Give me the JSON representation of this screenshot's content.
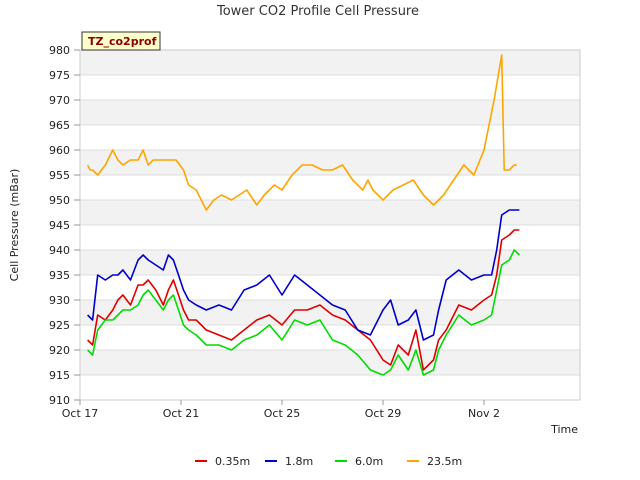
{
  "chart_data": {
    "type": "line",
    "title": "Tower CO2 Profile Cell Pressure",
    "badge": "TZ_co2prof",
    "xlabel": "Time",
    "ylabel": "Cell Pressure (mBar)",
    "ylim": [
      910,
      980
    ],
    "yticks": [
      910,
      915,
      920,
      925,
      930,
      935,
      940,
      945,
      950,
      955,
      960,
      965,
      970,
      975,
      980
    ],
    "xlim": [
      0,
      19.8
    ],
    "xticks": [
      {
        "v": 0,
        "label": "Oct 17"
      },
      {
        "v": 4,
        "label": "Oct 21"
      },
      {
        "v": 8,
        "label": "Oct 25"
      },
      {
        "v": 12,
        "label": "Oct 29"
      },
      {
        "v": 16,
        "label": "Nov 2"
      }
    ],
    "grid": true,
    "legend_position": "bottom",
    "series": [
      {
        "name": "0.35m",
        "color": "#e00000",
        "x": [
          0.3,
          0.5,
          0.7,
          1.0,
          1.3,
          1.5,
          1.7,
          2.0,
          2.3,
          2.5,
          2.7,
          3.0,
          3.3,
          3.5,
          3.7,
          3.9,
          4.1,
          4.3,
          4.6,
          5.0,
          5.5,
          6.0,
          6.5,
          7.0,
          7.5,
          8.0,
          8.5,
          9.0,
          9.5,
          10.0,
          10.5,
          11.0,
          11.5,
          12.0,
          12.3,
          12.6,
          13.0,
          13.3,
          13.6,
          14.0,
          14.2,
          14.5,
          15.0,
          15.5,
          16.0,
          16.3,
          16.5,
          16.7,
          17.0,
          17.2,
          17.4
        ],
        "y": [
          922,
          921,
          927,
          926,
          928,
          930,
          931,
          929,
          933,
          933,
          934,
          932,
          929,
          932,
          934,
          931,
          928,
          926,
          926,
          924,
          923,
          922,
          924,
          926,
          927,
          925,
          928,
          928,
          929,
          927,
          926,
          924,
          922,
          918,
          917,
          921,
          919,
          924,
          916,
          918,
          922,
          924,
          929,
          928,
          930,
          931,
          935,
          942,
          943,
          944,
          944
        ]
      },
      {
        "name": "1.8m",
        "color": "#0000cc",
        "x": [
          0.3,
          0.5,
          0.7,
          1.0,
          1.3,
          1.5,
          1.7,
          2.0,
          2.3,
          2.5,
          2.7,
          3.0,
          3.3,
          3.5,
          3.7,
          3.9,
          4.1,
          4.3,
          4.6,
          5.0,
          5.5,
          6.0,
          6.5,
          7.0,
          7.5,
          8.0,
          8.5,
          9.0,
          9.5,
          10.0,
          10.5,
          11.0,
          11.5,
          12.0,
          12.3,
          12.6,
          13.0,
          13.3,
          13.6,
          14.0,
          14.2,
          14.5,
          15.0,
          15.5,
          16.0,
          16.3,
          16.5,
          16.7,
          17.0,
          17.2,
          17.4
        ],
        "y": [
          927,
          926,
          935,
          934,
          935,
          935,
          936,
          934,
          938,
          939,
          938,
          937,
          936,
          939,
          938,
          935,
          932,
          930,
          929,
          928,
          929,
          928,
          932,
          933,
          935,
          931,
          935,
          933,
          931,
          929,
          928,
          924,
          923,
          928,
          930,
          925,
          926,
          928,
          922,
          923,
          928,
          934,
          936,
          934,
          935,
          935,
          940,
          947,
          948,
          948,
          948
        ]
      },
      {
        "name": "6.0m",
        "color": "#00dd00",
        "x": [
          0.3,
          0.5,
          0.7,
          1.0,
          1.3,
          1.5,
          1.7,
          2.0,
          2.3,
          2.5,
          2.7,
          3.0,
          3.3,
          3.5,
          3.7,
          3.9,
          4.1,
          4.3,
          4.6,
          5.0,
          5.5,
          6.0,
          6.5,
          7.0,
          7.5,
          8.0,
          8.5,
          9.0,
          9.5,
          10.0,
          10.5,
          11.0,
          11.5,
          12.0,
          12.3,
          12.6,
          13.0,
          13.3,
          13.6,
          14.0,
          14.2,
          14.5,
          15.0,
          15.5,
          16.0,
          16.3,
          16.5,
          16.7,
          17.0,
          17.2,
          17.4
        ],
        "y": [
          920,
          919,
          924,
          926,
          926,
          927,
          928,
          928,
          929,
          931,
          932,
          930,
          928,
          930,
          931,
          928,
          925,
          924,
          923,
          921,
          921,
          920,
          922,
          923,
          925,
          922,
          926,
          925,
          926,
          922,
          921,
          919,
          916,
          915,
          916,
          919,
          916,
          920,
          915,
          916,
          920,
          923,
          927,
          925,
          926,
          927,
          932,
          937,
          938,
          940,
          939
        ]
      },
      {
        "name": "23.5m",
        "color": "#ffa500",
        "x": [
          0.3,
          0.4,
          0.5,
          0.7,
          1.0,
          1.3,
          1.5,
          1.7,
          2.0,
          2.3,
          2.5,
          2.7,
          2.9,
          3.1,
          3.4,
          3.8,
          4.1,
          4.3,
          4.6,
          5.0,
          5.3,
          5.6,
          6.0,
          6.3,
          6.6,
          7.0,
          7.3,
          7.7,
          8.0,
          8.4,
          8.8,
          9.2,
          9.6,
          10.0,
          10.4,
          10.8,
          11.2,
          11.4,
          11.6,
          12.0,
          12.2,
          12.4,
          12.8,
          13.2,
          13.6,
          14.0,
          14.4,
          14.8,
          15.2,
          15.6,
          16.0,
          16.4,
          16.7,
          16.8,
          17.0,
          17.2,
          17.3
        ],
        "y": [
          957,
          956,
          956,
          955,
          957,
          960,
          958,
          957,
          958,
          958,
          960,
          957,
          958,
          958,
          958,
          958,
          956,
          953,
          952,
          948,
          950,
          951,
          950,
          951,
          952,
          949,
          951,
          953,
          952,
          955,
          957,
          957,
          956,
          956,
          957,
          954,
          952,
          954,
          952,
          950,
          951,
          952,
          953,
          954,
          951,
          949,
          951,
          954,
          957,
          955,
          960,
          970,
          979,
          956,
          956,
          957,
          957
        ]
      }
    ]
  }
}
